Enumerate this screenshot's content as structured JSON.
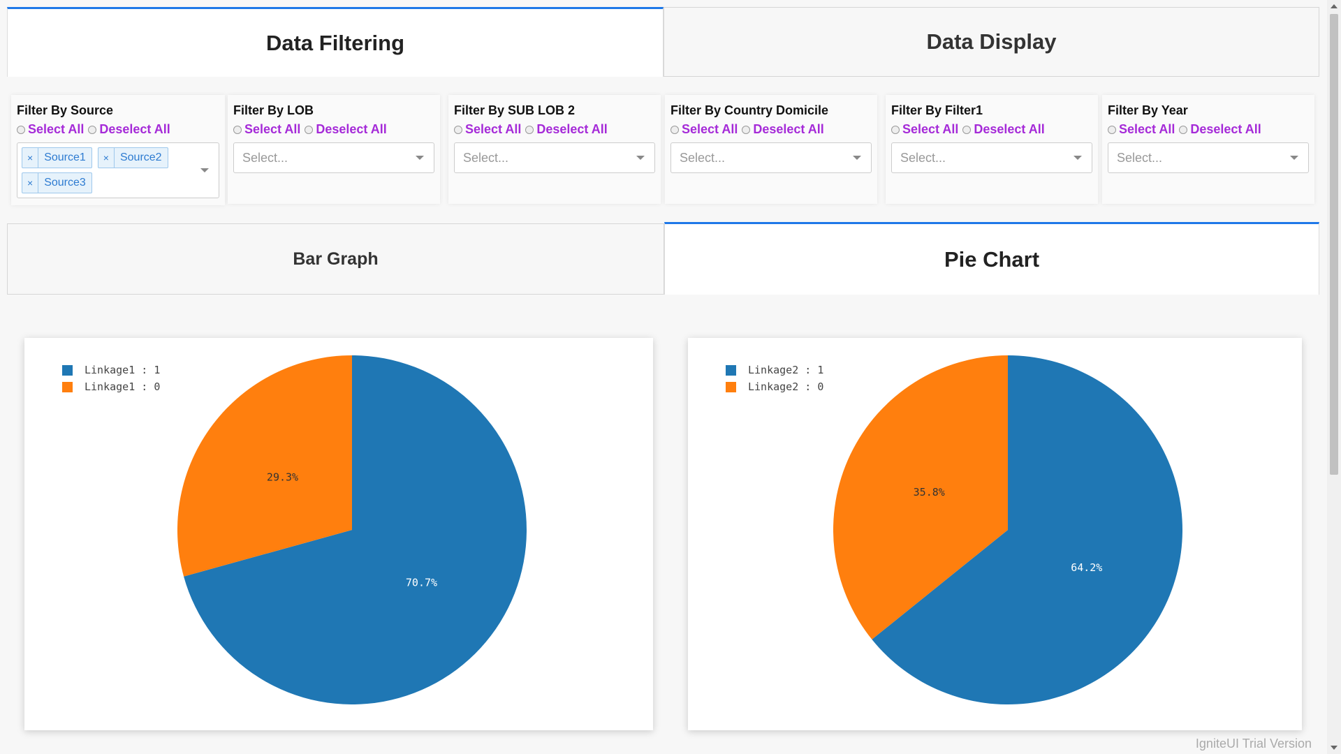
{
  "top_tabs": [
    {
      "label": "Data Filtering",
      "active": true
    },
    {
      "label": "Data Display",
      "active": false
    }
  ],
  "filters": [
    {
      "title": "Filter By Source",
      "select_all": "Select All",
      "deselect_all": "Deselect All",
      "placeholder": "",
      "selected": [
        "Source1",
        "Source2",
        "Source3"
      ]
    },
    {
      "title": "Filter By LOB",
      "select_all": "Select All",
      "deselect_all": "Deselect All",
      "placeholder": "Select...",
      "selected": []
    },
    {
      "title": "Filter By SUB LOB 2",
      "select_all": "Select All",
      "deselect_all": "Deselect All",
      "placeholder": "Select...",
      "selected": []
    },
    {
      "title": "Filter By Country Domicile",
      "select_all": "Select All",
      "deselect_all": "Deselect All",
      "placeholder": "Select...",
      "selected": []
    },
    {
      "title": "Filter By Filter1",
      "select_all": "Select All",
      "deselect_all": "Deselect All",
      "placeholder": "Select...",
      "selected": []
    },
    {
      "title": "Filter By Year",
      "select_all": "Select All",
      "deselect_all": "Deselect All",
      "placeholder": "Select...",
      "selected": []
    }
  ],
  "chart_tabs": [
    {
      "label": "Bar Graph",
      "active": false
    },
    {
      "label": "Pie Chart",
      "active": true
    }
  ],
  "chip_remove_glyph": "×",
  "colors": {
    "accent": "#1f78e8",
    "link_purple": "#a52ad8",
    "series_blue": "#1f77b4",
    "series_orange": "#ff7f0e"
  },
  "chart_data": [
    {
      "type": "pie",
      "series": [
        {
          "name": "Linkage1 : 1",
          "value": 70.7,
          "label": "70.7%",
          "color": "#1f77b4"
        },
        {
          "name": "Linkage1 : 0",
          "value": 29.3,
          "label": "29.3%",
          "color": "#ff7f0e"
        }
      ]
    },
    {
      "type": "pie",
      "series": [
        {
          "name": "Linkage2 : 1",
          "value": 64.2,
          "label": "64.2%",
          "color": "#1f77b4"
        },
        {
          "name": "Linkage2 : 0",
          "value": 35.8,
          "label": "35.8%",
          "color": "#ff7f0e"
        }
      ]
    }
  ],
  "watermark": "IgniteUI Trial Version"
}
